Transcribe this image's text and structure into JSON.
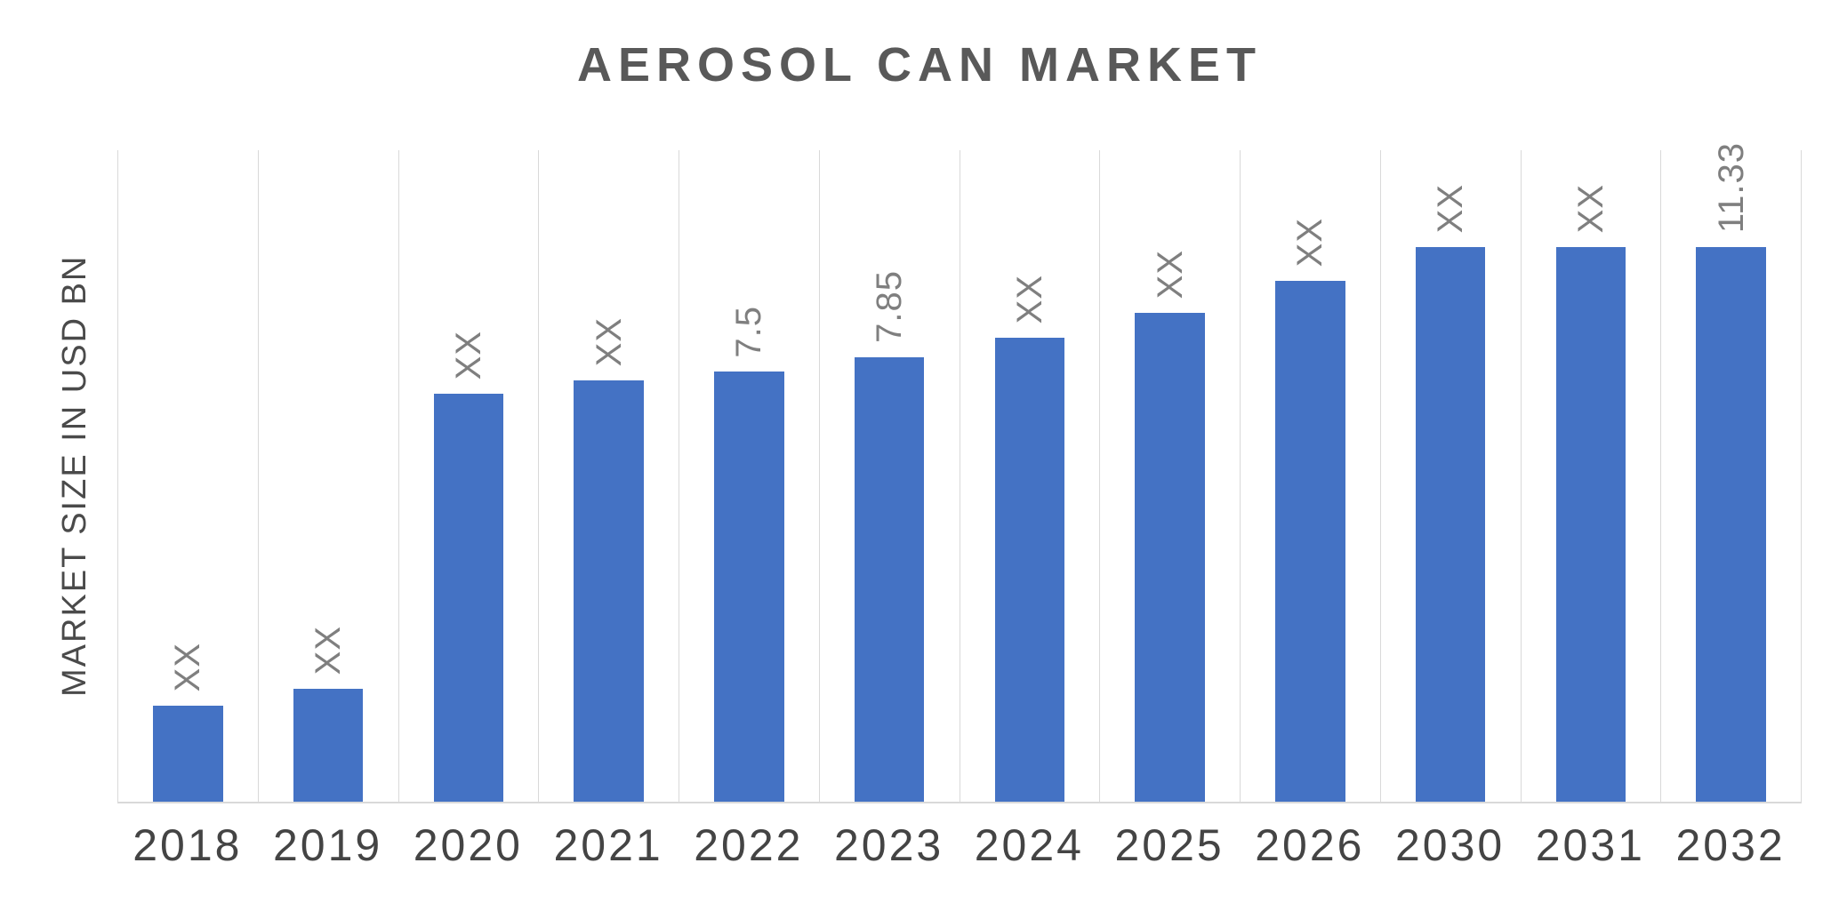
{
  "chart_data": {
    "type": "bar",
    "title": "AEROSOL CAN MARKET",
    "ylabel": "MARKET SIZE IN USD BN",
    "xlabel": "",
    "categories": [
      "2018",
      "2019",
      "2020",
      "2021",
      "2022",
      "2023",
      "2024",
      "2025",
      "2026",
      "2030",
      "2031",
      "2032"
    ],
    "bar_labels": [
      "XX",
      "XX",
      "XX",
      "XX",
      "7.5",
      "7.85",
      "XX",
      "XX",
      "XX",
      "XX",
      "XX",
      "11.33"
    ],
    "values_usd_bn": [
      null,
      null,
      null,
      null,
      7.5,
      7.85,
      null,
      null,
      null,
      null,
      null,
      11.33
    ],
    "height_pct": [
      14.7,
      17.3,
      62.6,
      64.6,
      66.0,
      68.2,
      71.2,
      75.0,
      79.9,
      85.1,
      85.1,
      85.1
    ],
    "legend": "none",
    "grid": "vertical-category-separators",
    "colors": {
      "bar": "#4472C4",
      "bar_label": "#7f7f7f",
      "title": "#595959",
      "axis_text": "#4a4a4a",
      "tick_text": "#444444",
      "gridline": "#d9d9d9",
      "background": "#ffffff"
    }
  }
}
